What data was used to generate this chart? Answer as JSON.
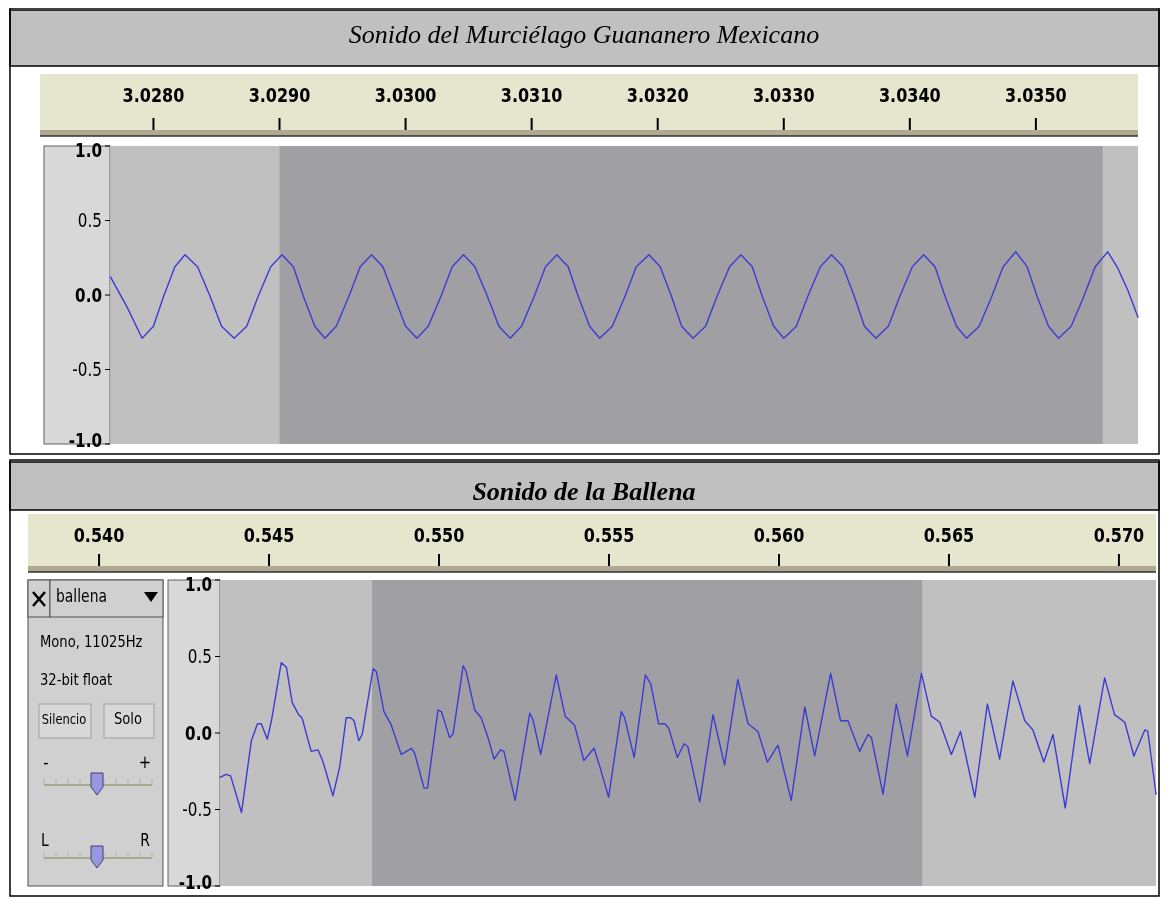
{
  "chart_data": [
    {
      "type": "line",
      "title": "Sonido del Murciélago Guananero Mexicano",
      "xlim": [
        3.0271,
        3.03581
      ],
      "ylim": [
        -1,
        1
      ],
      "xticks": [
        {
          "value": 3.028,
          "label": "3.0280"
        },
        {
          "value": 3.029,
          "label": "3.0290"
        },
        {
          "value": 3.03,
          "label": "3.0300"
        },
        {
          "value": 3.031,
          "label": "3.0310"
        },
        {
          "value": 3.032,
          "label": "3.0320"
        },
        {
          "value": 3.033,
          "label": "3.0330"
        },
        {
          "value": 3.034,
          "label": "3.0340"
        },
        {
          "value": 3.035,
          "label": "3.0350"
        }
      ],
      "yticks": [
        {
          "value": 1,
          "label": "1.0"
        },
        {
          "value": 0.5,
          "label": "0.5"
        },
        {
          "value": 0,
          "label": "0.0"
        },
        {
          "value": -0.5,
          "label": "-0.5"
        },
        {
          "value": -1,
          "label": "-1.0"
        }
      ],
      "bands": [
        {
          "axis": "x",
          "from": 3.02766,
          "to": 3.03581,
          "color": "#c0c0c0"
        },
        {
          "axis": "x",
          "from": 3.029,
          "to": 3.03553,
          "color": "#a09fa4"
        }
      ],
      "x": [
        3.02766,
        3.02779,
        3.02791,
        3.028,
        3.02808,
        3.02817,
        3.02825,
        3.02835,
        3.02845,
        3.02854,
        3.02864,
        3.02874,
        3.02883,
        3.02893,
        3.02902,
        3.02911,
        3.02919,
        3.02928,
        3.02936,
        3.02945,
        3.02955,
        3.02964,
        3.02973,
        3.02982,
        3.02991,
        3.03,
        3.03009,
        3.03018,
        3.03028,
        3.03037,
        3.03046,
        3.03055,
        3.03065,
        3.03074,
        3.03083,
        3.03092,
        3.03102,
        3.03111,
        3.0312,
        3.03129,
        3.03137,
        3.03146,
        3.03154,
        3.03164,
        3.03174,
        3.03183,
        3.03193,
        3.03202,
        3.03211,
        3.03219,
        3.03228,
        3.03238,
        3.03247,
        3.03257,
        3.03266,
        3.03275,
        3.03283,
        3.03292,
        3.033,
        3.0331,
        3.03319,
        3.03329,
        3.03338,
        3.03347,
        3.03356,
        3.03364,
        3.03373,
        3.03383,
        3.03392,
        3.03402,
        3.03411,
        3.0342,
        3.03428,
        3.03437,
        3.03445,
        3.03455,
        3.03465,
        3.03474,
        3.03484,
        3.03493,
        3.03501,
        3.0351,
        3.03518,
        3.03528,
        3.03538,
        3.03547,
        3.03557,
        3.03565,
        3.03573,
        3.03581
      ],
      "series": [
        {
          "color": "#3c3cd2",
          "values": [
            0.12,
            -0.08,
            -0.29,
            -0.21,
            -0.01,
            0.19,
            0.27,
            0.19,
            -0.01,
            -0.21,
            -0.29,
            -0.21,
            -0.01,
            0.19,
            0.27,
            0.19,
            -0.01,
            -0.21,
            -0.29,
            -0.21,
            -0.01,
            0.19,
            0.27,
            0.19,
            -0.01,
            -0.21,
            -0.29,
            -0.21,
            -0.01,
            0.19,
            0.27,
            0.19,
            -0.01,
            -0.21,
            -0.29,
            -0.21,
            -0.01,
            0.19,
            0.27,
            0.19,
            -0.01,
            -0.21,
            -0.29,
            -0.21,
            -0.01,
            0.19,
            0.27,
            0.19,
            -0.01,
            -0.21,
            -0.29,
            -0.21,
            -0.01,
            0.19,
            0.27,
            0.19,
            -0.01,
            -0.21,
            -0.29,
            -0.21,
            -0.01,
            0.19,
            0.27,
            0.19,
            -0.01,
            -0.21,
            -0.29,
            -0.21,
            -0.01,
            0.19,
            0.27,
            0.19,
            -0.01,
            -0.21,
            -0.29,
            -0.21,
            -0.01,
            0.19,
            0.29,
            0.19,
            -0.01,
            -0.21,
            -0.29,
            -0.21,
            -0.01,
            0.19,
            0.29,
            0.18,
            0.03,
            -0.15
          ]
        }
      ]
    },
    {
      "type": "line",
      "title": "Sonido de la Ballena",
      "xlim": [
        0.53791,
        0.57109
      ],
      "ylim": [
        -1,
        1
      ],
      "xticks": [
        {
          "value": 0.54,
          "label": "0.540"
        },
        {
          "value": 0.545,
          "label": "0.545"
        },
        {
          "value": 0.55,
          "label": "0.550"
        },
        {
          "value": 0.555,
          "label": "0.555"
        },
        {
          "value": 0.56,
          "label": "0.560"
        },
        {
          "value": 0.565,
          "label": "0.565"
        },
        {
          "value": 0.57,
          "label": "0.570"
        }
      ],
      "yticks": [
        {
          "value": 1,
          "label": "1.0"
        },
        {
          "value": 0.5,
          "label": "0.5"
        },
        {
          "value": 0,
          "label": "0.0"
        },
        {
          "value": -0.5,
          "label": "-0.5"
        },
        {
          "value": -1,
          "label": "-1.0"
        }
      ],
      "bands": [
        {
          "axis": "x",
          "from": 0.54356,
          "to": 0.57109,
          "color": "#c0c0c0"
        },
        {
          "axis": "x",
          "from": 0.54803,
          "to": 0.56421,
          "color": "#a09fa4"
        }
      ],
      "annotations": [
        "ballena",
        "Mono, 11025Hz",
        "32-bit float",
        "Silencio",
        "Solo",
        "-",
        "+",
        "L",
        "R"
      ],
      "x": [
        0.54356,
        0.54374,
        0.54387,
        0.54419,
        0.54448,
        0.54466,
        0.54477,
        0.54495,
        0.54507,
        0.54536,
        0.54551,
        0.54568,
        0.54587,
        0.54597,
        0.54624,
        0.54644,
        0.54659,
        0.54688,
        0.54708,
        0.54727,
        0.5474,
        0.5475,
        0.54764,
        0.54774,
        0.54806,
        0.54816,
        0.54838,
        0.54858,
        0.54889,
        0.54919,
        0.54928,
        0.54956,
        0.54966,
        0.54997,
        0.55007,
        0.55031,
        0.55041,
        0.55071,
        0.5508,
        0.55105,
        0.55124,
        0.55144,
        0.55162,
        0.55181,
        0.55191,
        0.55224,
        0.55267,
        0.55276,
        0.55299,
        0.55345,
        0.55371,
        0.55399,
        0.55426,
        0.55456,
        0.55473,
        0.55499,
        0.55536,
        0.55546,
        0.55574,
        0.55607,
        0.55623,
        0.55646,
        0.55664,
        0.55676,
        0.55701,
        0.55721,
        0.55732,
        0.55767,
        0.55806,
        0.5584,
        0.55879,
        0.55909,
        0.55938,
        0.55966,
        0.55997,
        0.56036,
        0.56076,
        0.56105,
        0.56152,
        0.56181,
        0.56203,
        0.56237,
        0.56262,
        0.56272,
        0.56306,
        0.56345,
        0.56378,
        0.56419,
        0.56448,
        0.56473,
        0.56507,
        0.56534,
        0.56576,
        0.56613,
        0.56649,
        0.56688,
        0.56723,
        0.56747,
        0.56779,
        0.56806,
        0.56842,
        0.56884,
        0.56914,
        0.56958,
        0.56987,
        0.57017,
        0.57044,
        0.57076,
        0.57085,
        0.57109
      ],
      "series": [
        {
          "color": "#3c3cd2",
          "values": [
            -0.29,
            -0.27,
            -0.28,
            -0.52,
            -0.05,
            0.06,
            0.06,
            -0.04,
            0.08,
            0.46,
            0.43,
            0.2,
            0.12,
            0.1,
            -0.12,
            -0.11,
            -0.19,
            -0.41,
            -0.22,
            0.1,
            0.1,
            0.08,
            -0.05,
            -0.01,
            0.42,
            0.4,
            0.14,
            0.06,
            -0.14,
            -0.1,
            -0.13,
            -0.36,
            -0.36,
            0.15,
            0.14,
            -0.03,
            -0.01,
            0.44,
            0.4,
            0.15,
            0.1,
            -0.03,
            -0.17,
            -0.11,
            -0.12,
            -0.44,
            0.13,
            0.09,
            -0.14,
            0.38,
            0.11,
            0.05,
            -0.18,
            -0.1,
            -0.22,
            -0.42,
            0.14,
            0.1,
            -0.16,
            0.38,
            0.32,
            0.06,
            0.06,
            0.03,
            -0.16,
            -0.07,
            -0.09,
            -0.45,
            0.12,
            -0.21,
            0.35,
            0.06,
            0.01,
            -0.19,
            -0.08,
            -0.44,
            0.17,
            -0.15,
            0.39,
            0.08,
            0.08,
            -0.12,
            -0.01,
            -0.03,
            -0.4,
            0.19,
            -0.15,
            0.39,
            0.11,
            0.07,
            -0.14,
            0.01,
            -0.42,
            0.19,
            -0.17,
            0.34,
            0.08,
            0.02,
            -0.19,
            -0.01,
            -0.49,
            0.18,
            -0.2,
            0.36,
            0.12,
            0.07,
            -0.15,
            0.02,
            0.01,
            -0.4
          ]
        }
      ]
    }
  ]
}
